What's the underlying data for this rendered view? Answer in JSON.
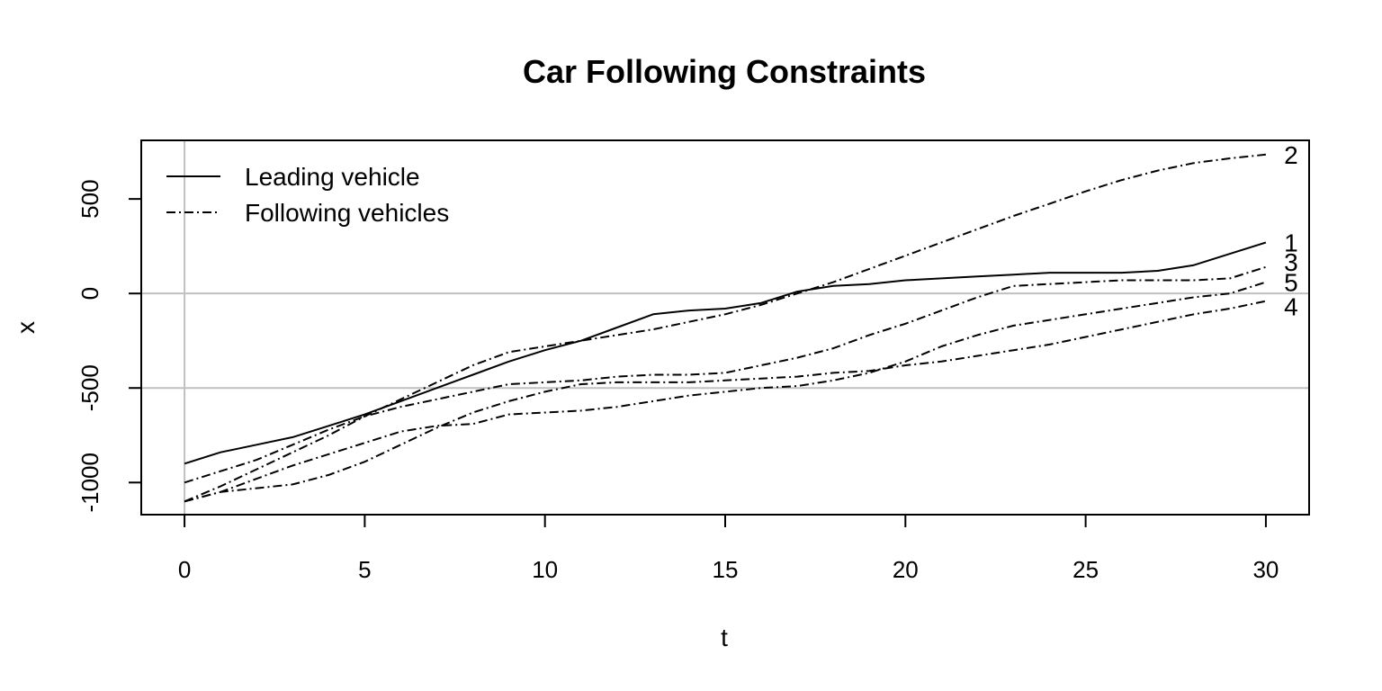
{
  "chart_data": {
    "type": "line",
    "title": "Car Following Constraints",
    "xlabel": "t",
    "ylabel": "x",
    "xlim": [
      -1.2,
      31.2
    ],
    "ylim": [
      -1170,
      810
    ],
    "x_ticks": [
      0,
      5,
      10,
      15,
      20,
      25,
      30
    ],
    "y_ticks": [
      -1000,
      -500,
      0,
      500
    ],
    "grid": {
      "vertical": [
        0
      ],
      "horizontal": [
        0,
        -500
      ],
      "color": "#c0c0c0"
    },
    "legend": {
      "position": "top-left",
      "entries": [
        {
          "label": "Leading vehicle",
          "dash": "solid"
        },
        {
          "label": "Following vehicles",
          "dash": "dashdot"
        }
      ]
    },
    "series": [
      {
        "name": "1",
        "dash": "solid",
        "x": [
          0,
          1,
          2,
          3,
          4,
          5,
          6,
          7,
          8,
          9,
          10,
          11,
          12,
          13,
          14,
          15,
          16,
          17,
          18,
          19,
          20,
          21,
          22,
          23,
          24,
          25,
          26,
          27,
          28,
          29,
          30
        ],
        "y": [
          -900,
          -840,
          -800,
          -760,
          -700,
          -640,
          -570,
          -500,
          -430,
          -360,
          -300,
          -250,
          -180,
          -110,
          -90,
          -80,
          -50,
          10,
          40,
          50,
          70,
          80,
          90,
          100,
          110,
          110,
          110,
          120,
          150,
          210,
          270
        ]
      },
      {
        "name": "2",
        "dash": "dashdot",
        "x": [
          0,
          1,
          2,
          3,
          4,
          5,
          6,
          7,
          8,
          9,
          10,
          11,
          12,
          13,
          14,
          15,
          16,
          17,
          18,
          19,
          20,
          21,
          22,
          23,
          24,
          25,
          26,
          27,
          28,
          29,
          30
        ],
        "y": [
          -1100,
          -1020,
          -930,
          -840,
          -750,
          -650,
          -560,
          -470,
          -380,
          -310,
          -280,
          -250,
          -220,
          -190,
          -150,
          -110,
          -60,
          0,
          60,
          130,
          200,
          270,
          340,
          410,
          475,
          540,
          600,
          650,
          690,
          715,
          735
        ]
      },
      {
        "name": "3",
        "dash": "dashdot",
        "x": [
          0,
          1,
          2,
          3,
          4,
          5,
          6,
          7,
          8,
          9,
          10,
          11,
          12,
          13,
          14,
          15,
          16,
          17,
          18,
          19,
          20,
          21,
          22,
          23,
          24,
          25,
          26,
          27,
          28,
          29,
          30
        ],
        "y": [
          -1000,
          -940,
          -880,
          -800,
          -720,
          -650,
          -600,
          -560,
          -520,
          -480,
          -470,
          -460,
          -440,
          -430,
          -430,
          -420,
          -380,
          -340,
          -290,
          -220,
          -160,
          -90,
          -20,
          40,
          50,
          60,
          70,
          70,
          70,
          80,
          140
        ]
      },
      {
        "name": "4",
        "dash": "dashdot",
        "x": [
          0,
          1,
          2,
          3,
          4,
          5,
          6,
          7,
          8,
          9,
          10,
          11,
          12,
          13,
          14,
          15,
          16,
          17,
          18,
          19,
          20,
          21,
          22,
          23,
          24,
          25,
          26,
          27,
          28,
          29,
          30
        ],
        "y": [
          -1100,
          -1050,
          -1030,
          -1010,
          -960,
          -890,
          -800,
          -710,
          -630,
          -570,
          -520,
          -480,
          -470,
          -470,
          -470,
          -460,
          -450,
          -440,
          -420,
          -410,
          -380,
          -360,
          -330,
          -300,
          -270,
          -230,
          -190,
          -150,
          -110,
          -80,
          -40
        ]
      },
      {
        "name": "5",
        "dash": "dashdot",
        "x": [
          0,
          1,
          2,
          3,
          4,
          5,
          6,
          7,
          8,
          9,
          10,
          11,
          12,
          13,
          14,
          15,
          16,
          17,
          18,
          19,
          20,
          21,
          22,
          23,
          24,
          25,
          26,
          27,
          28,
          29,
          30
        ],
        "y": [
          -1100,
          -1050,
          -980,
          -910,
          -850,
          -790,
          -730,
          -700,
          -690,
          -640,
          -630,
          -620,
          -600,
          -570,
          -540,
          -520,
          -500,
          -490,
          -460,
          -420,
          -360,
          -280,
          -220,
          -170,
          -140,
          -110,
          -80,
          -50,
          -20,
          0,
          60
        ]
      }
    ]
  }
}
